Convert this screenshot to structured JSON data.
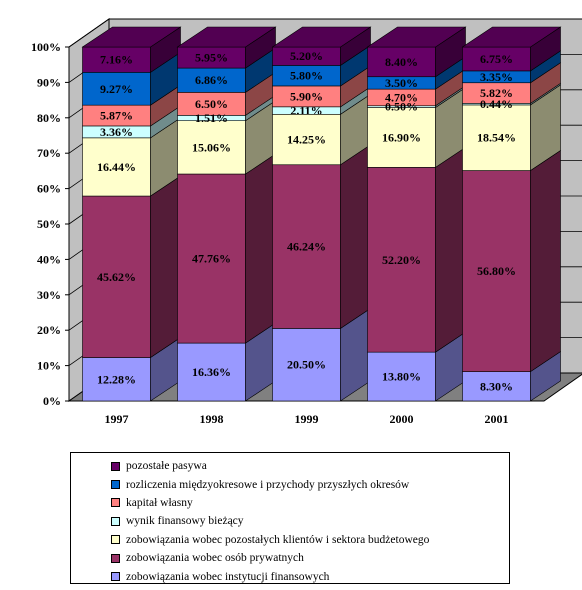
{
  "chart_data": {
    "type": "bar",
    "stacked": true,
    "percent": true,
    "three_d": true,
    "categories": [
      "1997",
      "1998",
      "1999",
      "2000",
      "2001"
    ],
    "ylim": [
      0,
      100
    ],
    "y_ticks": [
      "0%",
      "10%",
      "20%",
      "30%",
      "40%",
      "50%",
      "60%",
      "70%",
      "80%",
      "90%",
      "100%"
    ],
    "legend_position": "bottom",
    "series": [
      {
        "name": "zobowiązania wobec instytucji finansowych",
        "color": "#9999FF",
        "values": [
          12.28,
          16.36,
          20.5,
          13.8,
          8.3
        ],
        "labels": [
          "12.28%",
          "16.36%",
          "20.50%",
          "13.80%",
          "8.30%"
        ]
      },
      {
        "name": "zobowiązania wobec osób prywatnych",
        "color": "#993366",
        "values": [
          45.62,
          47.76,
          46.24,
          52.2,
          56.8
        ],
        "labels": [
          "45.62%",
          "47.76%",
          "46.24%",
          "52.20%",
          "56.80%"
        ]
      },
      {
        "name": "zobowiązania wobec pozostałych klientów i sektora budżetowego",
        "color": "#FFFFCC",
        "values": [
          16.44,
          15.06,
          14.25,
          16.9,
          18.54
        ],
        "labels": [
          "16.44%",
          "15.06%",
          "14.25%",
          "16.90%",
          "18.54%"
        ]
      },
      {
        "name": "wynik finansowy bieżący",
        "color": "#CCFFFF",
        "values": [
          3.36,
          1.51,
          2.11,
          0.5,
          0.44
        ],
        "labels": [
          "3.36%",
          "1.51%",
          "2.11%",
          "0.50%",
          "0.44%"
        ]
      },
      {
        "name": "kapitał własny",
        "color": "#FF8080",
        "values": [
          5.87,
          6.5,
          5.9,
          4.7,
          5.82
        ],
        "labels": [
          "5.87%",
          "6.50%",
          "5.90%",
          "4.70%",
          "5.82%"
        ]
      },
      {
        "name": "rozliczenia międzyokresowe i przychody przyszłych okresów",
        "color": "#0066CC",
        "values": [
          9.27,
          6.86,
          5.8,
          3.5,
          3.35
        ],
        "labels": [
          "9.27%",
          "6.86%",
          "5.80%",
          "3.50%",
          "3.35%"
        ]
      },
      {
        "name": "pozostałe pasywa",
        "color": "#660066",
        "values": [
          7.16,
          5.95,
          5.2,
          8.4,
          6.75
        ],
        "labels": [
          "7.16%",
          "5.95%",
          "5.20%",
          "8.40%",
          "6.75%"
        ]
      }
    ]
  },
  "colors": {
    "wall": "#C0C0C0",
    "floor": "#808080"
  }
}
